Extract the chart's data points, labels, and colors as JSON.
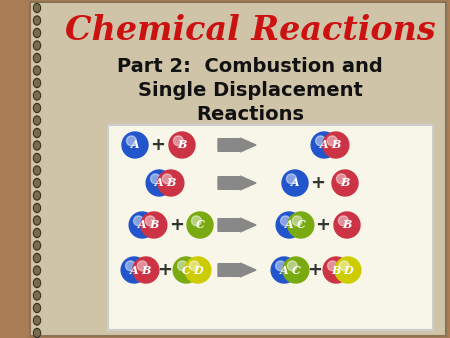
{
  "title": "Chemical Reactions",
  "subtitle_line1": "Part 2:  Combustion and",
  "subtitle_line2": "Single Displacement",
  "subtitle_line3": "Reactions",
  "title_color": "#cc1111",
  "subtitle_color": "#111111",
  "bg_outer": "#a87d55",
  "bg_notebook": "#cfc4a8",
  "bg_white_box": "#f8f6e8",
  "colors": {
    "A": "#2255cc",
    "B": "#cc3344",
    "C": "#7aaa11",
    "D": "#cccc00"
  },
  "arrow_color": "#888888",
  "spiral_dark": "#333322",
  "spiral_mid": "#7a6a50"
}
